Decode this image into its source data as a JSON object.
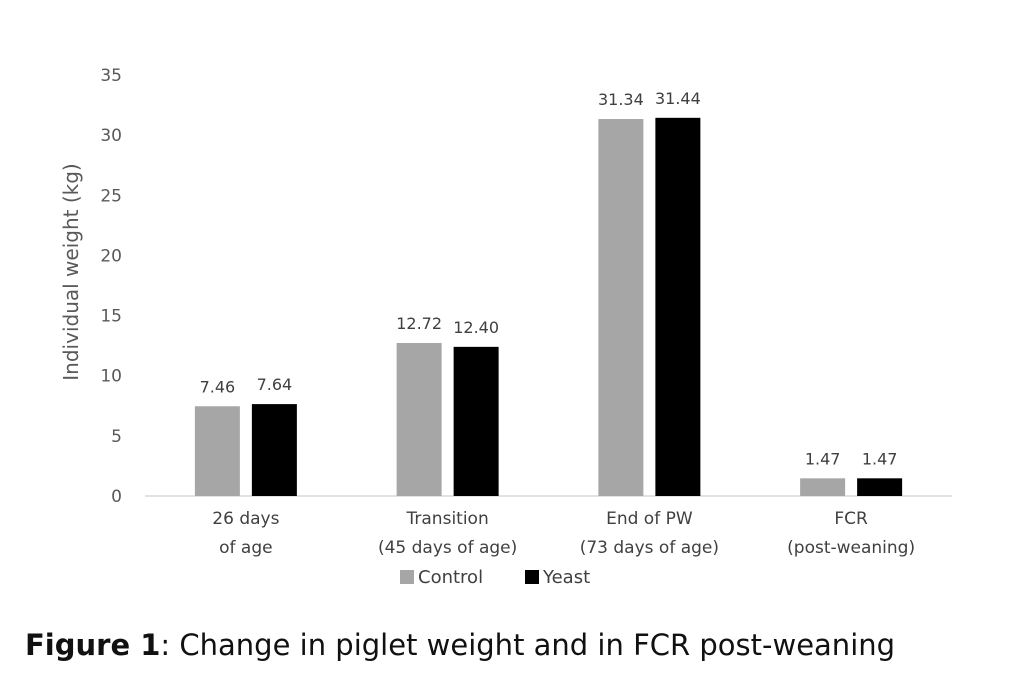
{
  "chart_data": {
    "type": "bar",
    "categories": [
      [
        "26 days",
        "of age"
      ],
      [
        "Transition",
        "(45 days of age)"
      ],
      [
        "End of PW",
        "(73 days of age)"
      ],
      [
        "FCR",
        "(post-weaning)"
      ]
    ],
    "series": [
      {
        "name": "Control",
        "color": "#a6a6a6",
        "values": [
          7.46,
          12.72,
          31.34,
          1.47
        ],
        "labels": [
          "7.46",
          "12.72",
          "31.34",
          "1.47"
        ]
      },
      {
        "name": "Yeast",
        "color": "#000000",
        "values": [
          7.64,
          12.4,
          31.44,
          1.47
        ],
        "labels": [
          "7.64",
          "12.40",
          "31.44",
          "1.47"
        ]
      }
    ],
    "ylabel": "Individual weight (kg)",
    "xlabel": "",
    "ylim": [
      0,
      35
    ],
    "yticks": [
      0,
      5,
      10,
      15,
      20,
      25,
      30,
      35
    ],
    "grid": false,
    "legend_position": "bottom"
  },
  "caption": {
    "bold": "Figure 1",
    "text": ": Change in piglet weight and in FCR post-weaning"
  }
}
